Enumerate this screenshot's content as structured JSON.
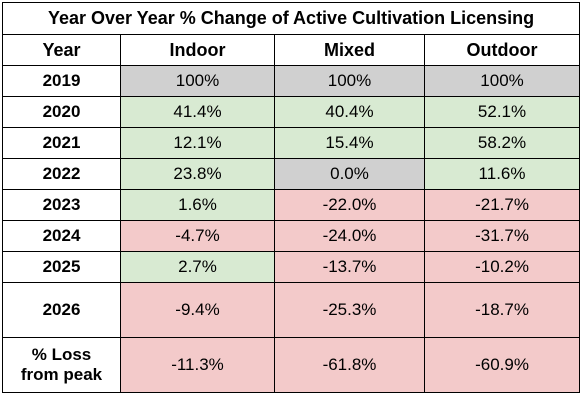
{
  "title": "Year Over Year % Change of Active Cultivation Licensing",
  "columns": [
    "Year",
    "Indoor",
    "Mixed",
    "Outdoor"
  ],
  "rows": [
    {
      "year": "2019",
      "values": [
        "100%",
        "100%",
        "100%"
      ],
      "fills": [
        "gray",
        "gray",
        "gray"
      ]
    },
    {
      "year": "2020",
      "values": [
        "41.4%",
        "40.4%",
        "52.1%"
      ],
      "fills": [
        "green",
        "green",
        "green"
      ]
    },
    {
      "year": "2021",
      "values": [
        "12.1%",
        "15.4%",
        "58.2%"
      ],
      "fills": [
        "green",
        "green",
        "green"
      ]
    },
    {
      "year": "2022",
      "values": [
        "23.8%",
        "0.0%",
        "11.6%"
      ],
      "fills": [
        "green",
        "gray",
        "green"
      ]
    },
    {
      "year": "2023",
      "values": [
        "1.6%",
        "-22.0%",
        "-21.7%"
      ],
      "fills": [
        "green",
        "red",
        "red"
      ]
    },
    {
      "year": "2024",
      "values": [
        "-4.7%",
        "-24.0%",
        "-31.7%"
      ],
      "fills": [
        "red",
        "red",
        "red"
      ]
    },
    {
      "year": "2025",
      "values": [
        "2.7%",
        "-13.7%",
        "-10.2%"
      ],
      "fills": [
        "green",
        "red",
        "red"
      ]
    },
    {
      "year": "2026",
      "values": [
        "-9.4%",
        "-25.3%",
        "-18.7%"
      ],
      "fills": [
        "red",
        "red",
        "red"
      ]
    }
  ],
  "loss_row": {
    "label_line1": "% Loss",
    "label_line2": "from peak",
    "values": [
      "-11.3%",
      "-61.8%",
      "-60.9%"
    ],
    "fills": [
      "red",
      "red",
      "red"
    ]
  },
  "colors": {
    "neutral": "#d0d0d0",
    "positive": "#d8ead2",
    "negative": "#f3caca"
  }
}
